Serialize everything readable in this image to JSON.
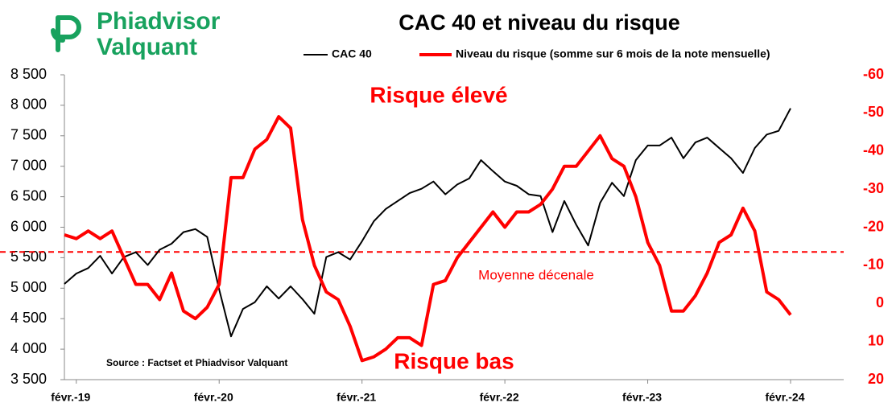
{
  "logo": {
    "line1": "Phiadvisor",
    "line2": "Valquant"
  },
  "chart_data": {
    "type": "line",
    "title": "CAC 40 et niveau du risque",
    "annotations": [
      "Risque élevé",
      "Risque bas",
      "Source : Factset et Phiadvisor Valquant"
    ],
    "categories": [
      null,
      "févr.-19",
      null,
      null,
      null,
      null,
      null,
      null,
      null,
      null,
      null,
      null,
      null,
      "févr.-20",
      null,
      null,
      null,
      null,
      null,
      null,
      null,
      null,
      null,
      null,
      null,
      "févr.-21",
      null,
      null,
      null,
      null,
      null,
      null,
      null,
      null,
      null,
      null,
      null,
      "févr.-22",
      null,
      null,
      null,
      null,
      null,
      null,
      null,
      null,
      null,
      null,
      null,
      "févr.-23",
      null,
      null,
      null,
      null,
      null,
      null,
      null,
      null,
      null,
      null,
      null,
      "févr.-24"
    ],
    "series": [
      {
        "name": "CAC 40",
        "color": "#000000",
        "values": [
          5070,
          5240,
          5330,
          5530,
          5240,
          5510,
          5590,
          5380,
          5630,
          5730,
          5920,
          5970,
          5840,
          4980,
          4210,
          4660,
          4770,
          5030,
          4830,
          5030,
          4820,
          4580,
          5510,
          5590,
          5470,
          5770,
          6100,
          6300,
          6430,
          6560,
          6630,
          6750,
          6540,
          6700,
          6800,
          7100,
          6920,
          6750,
          6680,
          6540,
          6510,
          5920,
          6430,
          6040,
          5700,
          6400,
          6730,
          6510,
          7100,
          7340,
          7340,
          7470,
          7130,
          7390,
          7470,
          7300,
          7130,
          6890,
          7300,
          7520,
          7580,
          7950
        ]
      },
      {
        "name": "Niveau du risque (somme sur 6 mois de la note mensuelle)",
        "color": "#ff0000",
        "axis": "y2",
        "values": [
          -18,
          -17,
          -19,
          -17,
          -19,
          -12,
          -5,
          -5,
          -1,
          -8,
          2,
          4,
          1,
          -5,
          -33,
          -33,
          -40.5,
          -43,
          -49,
          -46,
          -22,
          -10,
          -3,
          -1,
          6,
          15,
          14,
          12,
          9,
          9,
          11,
          -5,
          -6,
          -12,
          -16,
          -20,
          -24,
          -20,
          -24,
          -24,
          -26,
          -30,
          -36,
          -36,
          -40,
          -44,
          -38,
          -36,
          -28,
          -16,
          -10,
          2,
          2,
          -2,
          -8,
          -16,
          -18,
          -25,
          -19,
          -3,
          -1,
          3
        ]
      }
    ],
    "reference_line": {
      "value": -13.5,
      "axis": "y2",
      "label": "Moyenne décenale",
      "color": "#ff0000"
    },
    "ylim": [
      3500,
      8500
    ],
    "yticks": [
      {
        "value": 3500,
        "label": "3 500"
      },
      {
        "value": 4000,
        "label": "4 000"
      },
      {
        "value": 4500,
        "label": "4 500"
      },
      {
        "value": 5000,
        "label": "5 000"
      },
      {
        "value": 5500,
        "label": "5 500"
      },
      {
        "value": 6000,
        "label": "6 000"
      },
      {
        "value": 6500,
        "label": "6 500"
      },
      {
        "value": 7000,
        "label": "7 000"
      },
      {
        "value": 7500,
        "label": "7 500"
      },
      {
        "value": 8000,
        "label": "8 000"
      },
      {
        "value": 8500,
        "label": "8 500"
      }
    ],
    "y2lim": [
      20,
      -60
    ],
    "y2ticks": [
      20,
      10,
      0,
      -10,
      -20,
      -30,
      -40,
      -50,
      -60
    ],
    "grid": false
  }
}
